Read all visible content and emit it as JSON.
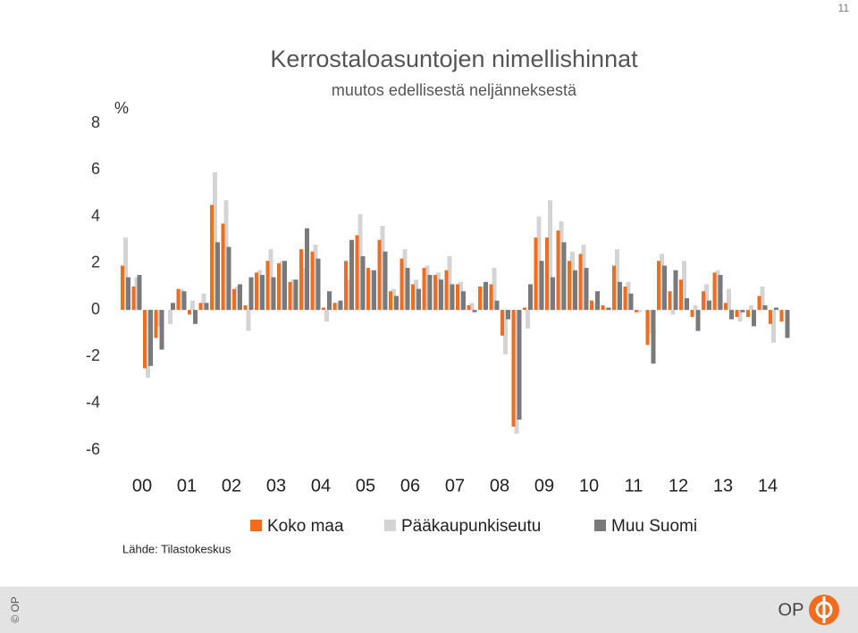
{
  "page_number": "11",
  "source": "Lähde: Tilastokeskus",
  "footer": {
    "copyright": "© OP",
    "logo": "OP"
  },
  "chart_data": {
    "type": "bar",
    "title": "Kerrostaloasuntojen nimellishinnat",
    "subtitle": "muutos edellisestä neljänneksestä",
    "y_label": "%",
    "categories": [
      "00",
      null,
      null,
      null,
      "01",
      null,
      null,
      null,
      "02",
      null,
      null,
      null,
      "03",
      null,
      null,
      null,
      "04",
      null,
      null,
      null,
      "05",
      null,
      null,
      null,
      "06",
      null,
      null,
      null,
      "07",
      null,
      null,
      null,
      "08",
      null,
      null,
      null,
      "09",
      null,
      null,
      null,
      "10",
      null,
      null,
      null,
      "11",
      null,
      null,
      null,
      "12",
      null,
      null,
      null,
      "13",
      null,
      null,
      null,
      "14",
      null,
      null,
      null
    ],
    "ylim": [
      -6,
      8
    ],
    "yticks": [
      -6,
      -4,
      -2,
      0,
      2,
      4,
      6,
      8
    ],
    "legend": "bottom",
    "series": [
      {
        "name": "Koko maa",
        "color": "#f26c1e",
        "values": [
          1.9,
          1.0,
          -2.5,
          -1.2,
          0.0,
          0.9,
          -0.2,
          0.3,
          4.5,
          3.7,
          0.9,
          0.2,
          1.6,
          2.1,
          2.0,
          1.2,
          2.6,
          2.5,
          0.1,
          0.3,
          2.1,
          3.2,
          1.8,
          3.0,
          0.8,
          2.2,
          1.1,
          1.8,
          1.5,
          1.7,
          1.1,
          0.2,
          1.0,
          1.1,
          -1.1,
          -5.0,
          0.1,
          3.1,
          3.1,
          3.4,
          2.1,
          2.4,
          0.4,
          0.2,
          1.9,
          1.0,
          -0.1,
          -1.5,
          2.1,
          0.8,
          1.3,
          -0.3,
          0.8,
          1.6,
          0.3,
          -0.3,
          -0.3,
          0.6,
          -0.6,
          -0.5
        ]
      },
      {
        "name": "Pääkaupunkiseutu",
        "color": "#d4d4d4",
        "values": [
          3.1,
          1.4,
          -2.9,
          -0.7,
          -0.6,
          0.9,
          0.4,
          0.7,
          5.9,
          4.7,
          1.0,
          -0.9,
          1.7,
          2.6,
          2.1,
          1.3,
          1.8,
          2.8,
          -0.5,
          0.3,
          1.3,
          4.1,
          1.7,
          3.6,
          0.9,
          2.6,
          1.3,
          1.9,
          1.6,
          2.3,
          1.2,
          0.3,
          1.0,
          1.8,
          -1.9,
          -5.3,
          -0.8,
          4.0,
          4.7,
          3.8,
          2.5,
          2.8,
          0.3,
          0.1,
          2.6,
          1.2,
          -0.1,
          -1.0,
          2.4,
          -0.2,
          2.1,
          0.2,
          1.1,
          1.7,
          0.9,
          -0.5,
          0.2,
          1.0,
          -1.4,
          0.0
        ]
      },
      {
        "name": "Muu Suomi",
        "color": "#7a7a7a",
        "values": [
          1.4,
          1.5,
          -2.4,
          -1.7,
          0.3,
          0.8,
          -0.6,
          0.3,
          2.9,
          2.7,
          1.1,
          1.4,
          1.5,
          1.4,
          2.1,
          1.3,
          3.5,
          2.2,
          0.8,
          0.4,
          3.0,
          2.3,
          1.7,
          2.5,
          0.6,
          1.8,
          0.9,
          1.5,
          1.3,
          1.1,
          0.8,
          -0.1,
          1.2,
          0.4,
          -0.4,
          -4.7,
          1.1,
          2.1,
          1.4,
          2.9,
          1.7,
          1.8,
          0.8,
          0.1,
          1.2,
          0.7,
          0.0,
          -2.3,
          1.9,
          1.7,
          0.5,
          -0.9,
          0.4,
          1.5,
          -0.4,
          -0.1,
          -0.7,
          0.2,
          0.1,
          -1.2
        ]
      }
    ]
  }
}
